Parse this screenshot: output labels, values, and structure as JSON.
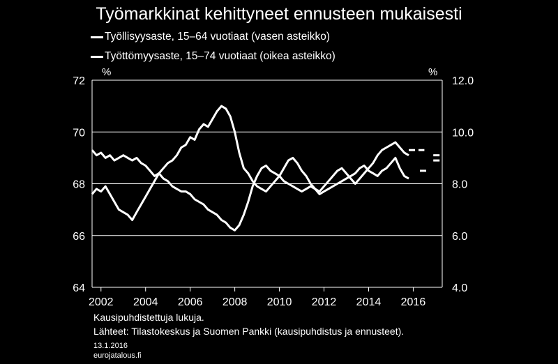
{
  "chart_data": {
    "type": "line",
    "title": "Työmarkkinat kehittyneet ennusteen mukaisesti",
    "legend_placement": "top-left",
    "left_axis": {
      "unit": "%",
      "ylim": [
        64,
        72
      ],
      "ticks": [
        "64",
        "66",
        "68",
        "70",
        "72"
      ]
    },
    "right_axis": {
      "unit": "%",
      "ylim": [
        4.0,
        12.0
      ],
      "ticks": [
        "4.0",
        "6.0",
        "8.0",
        "10.0",
        "12.0"
      ]
    },
    "xlim": [
      2001.6,
      2017.3
    ],
    "x_ticks": [
      "2002",
      "2004",
      "2006",
      "2008",
      "2010",
      "2012",
      "2014",
      "2016"
    ],
    "grid": "horizontal",
    "series": [
      {
        "name": "Työllisyysaste, 15–64 vuotiaat (vasen asteikko)",
        "axis": "left",
        "x": [
          2001.6,
          2001.8,
          2002.0,
          2002.2,
          2002.4,
          2002.6,
          2002.8,
          2003.0,
          2003.2,
          2003.4,
          2003.6,
          2003.8,
          2004.0,
          2004.2,
          2004.4,
          2004.6,
          2004.8,
          2005.0,
          2005.2,
          2005.4,
          2005.6,
          2005.8,
          2006.0,
          2006.2,
          2006.4,
          2006.6,
          2006.8,
          2007.0,
          2007.2,
          2007.4,
          2007.6,
          2007.8,
          2008.0,
          2008.2,
          2008.4,
          2008.6,
          2008.8,
          2009.0,
          2009.2,
          2009.4,
          2009.6,
          2009.8,
          2010.0,
          2010.2,
          2010.4,
          2010.6,
          2010.8,
          2011.0,
          2011.2,
          2011.4,
          2011.6,
          2011.8,
          2012.0,
          2012.2,
          2012.4,
          2012.6,
          2012.8,
          2013.0,
          2013.2,
          2013.4,
          2013.6,
          2013.8,
          2014.0,
          2014.2,
          2014.4,
          2014.6,
          2014.8,
          2015.0,
          2015.2,
          2015.4,
          2015.6,
          2015.8
        ],
        "values": [
          67.6,
          67.8,
          67.7,
          67.9,
          67.6,
          67.3,
          67.0,
          66.9,
          66.8,
          66.6,
          66.9,
          67.2,
          67.5,
          67.8,
          68.1,
          68.4,
          68.6,
          68.8,
          68.9,
          69.1,
          69.4,
          69.5,
          69.8,
          69.7,
          70.1,
          70.3,
          70.2,
          70.5,
          70.8,
          71.0,
          70.9,
          70.6,
          70.0,
          69.2,
          68.6,
          68.4,
          68.1,
          67.9,
          67.8,
          67.7,
          67.9,
          68.1,
          68.3,
          68.6,
          68.9,
          69.0,
          68.8,
          68.5,
          68.3,
          68.0,
          67.8,
          67.7,
          67.9,
          68.1,
          68.3,
          68.5,
          68.6,
          68.4,
          68.2,
          68.0,
          68.2,
          68.4,
          68.6,
          68.8,
          69.1,
          69.3,
          69.4,
          69.5,
          69.6,
          69.4,
          69.2,
          69.1
        ]
      },
      {
        "name": "Työttömyysaste, 15–74 vuotiaat (oikea asteikko)",
        "axis": "right",
        "x": [
          2001.6,
          2001.8,
          2002.0,
          2002.2,
          2002.4,
          2002.6,
          2002.8,
          2003.0,
          2003.2,
          2003.4,
          2003.6,
          2003.8,
          2004.0,
          2004.2,
          2004.4,
          2004.6,
          2004.8,
          2005.0,
          2005.2,
          2005.4,
          2005.6,
          2005.8,
          2006.0,
          2006.2,
          2006.4,
          2006.6,
          2006.8,
          2007.0,
          2007.2,
          2007.4,
          2007.6,
          2007.8,
          2008.0,
          2008.2,
          2008.4,
          2008.6,
          2008.8,
          2009.0,
          2009.2,
          2009.4,
          2009.6,
          2009.8,
          2010.0,
          2010.2,
          2010.4,
          2010.6,
          2010.8,
          2011.0,
          2011.2,
          2011.4,
          2011.6,
          2011.8,
          2012.0,
          2012.2,
          2012.4,
          2012.6,
          2012.8,
          2013.0,
          2013.2,
          2013.4,
          2013.6,
          2013.8,
          2014.0,
          2014.2,
          2014.4,
          2014.6,
          2014.8,
          2015.0,
          2015.2,
          2015.4,
          2015.6,
          2015.8
        ],
        "values": [
          9.3,
          9.1,
          9.2,
          9.0,
          9.1,
          8.9,
          9.0,
          9.1,
          9.0,
          8.9,
          9.0,
          8.8,
          8.7,
          8.5,
          8.3,
          8.4,
          8.2,
          8.1,
          7.9,
          7.8,
          7.7,
          7.7,
          7.6,
          7.4,
          7.3,
          7.2,
          7.0,
          6.9,
          6.8,
          6.6,
          6.5,
          6.3,
          6.2,
          6.4,
          6.8,
          7.3,
          7.9,
          8.3,
          8.6,
          8.7,
          8.5,
          8.4,
          8.3,
          8.1,
          8.0,
          7.9,
          7.8,
          7.7,
          7.8,
          7.9,
          7.8,
          7.6,
          7.7,
          7.8,
          7.9,
          8.0,
          8.1,
          8.2,
          8.3,
          8.4,
          8.6,
          8.7,
          8.5,
          8.4,
          8.3,
          8.5,
          8.6,
          8.8,
          9.0,
          8.6,
          8.3,
          8.2
        ]
      }
    ],
    "forecast_segments": [
      {
        "axis": "left",
        "x": [
          2015.8,
          2016.5
        ],
        "values": [
          69.3,
          69.3
        ]
      },
      {
        "axis": "left",
        "x": [
          2016.9,
          2017.3
        ],
        "values": [
          69.1,
          69.1
        ]
      },
      {
        "axis": "right",
        "x": [
          2016.9,
          2017.3
        ],
        "values": [
          8.9,
          8.9
        ]
      },
      {
        "axis": "right",
        "x": [
          2016.3,
          2016.7
        ],
        "values": [
          8.5,
          8.5
        ]
      }
    ]
  },
  "notes": {
    "line1": "Kausipuhdistettuja lukuja.",
    "line2": "Lähteet:  Tilastokeskus ja Suomen Pankki (kausipuhdistus ja ennusteet).",
    "date": "13.1.2016",
    "site": "eurojatalous.fi"
  },
  "colors": {
    "background": "#000000",
    "foreground": "#ffffff",
    "grid": "#ffffff"
  }
}
